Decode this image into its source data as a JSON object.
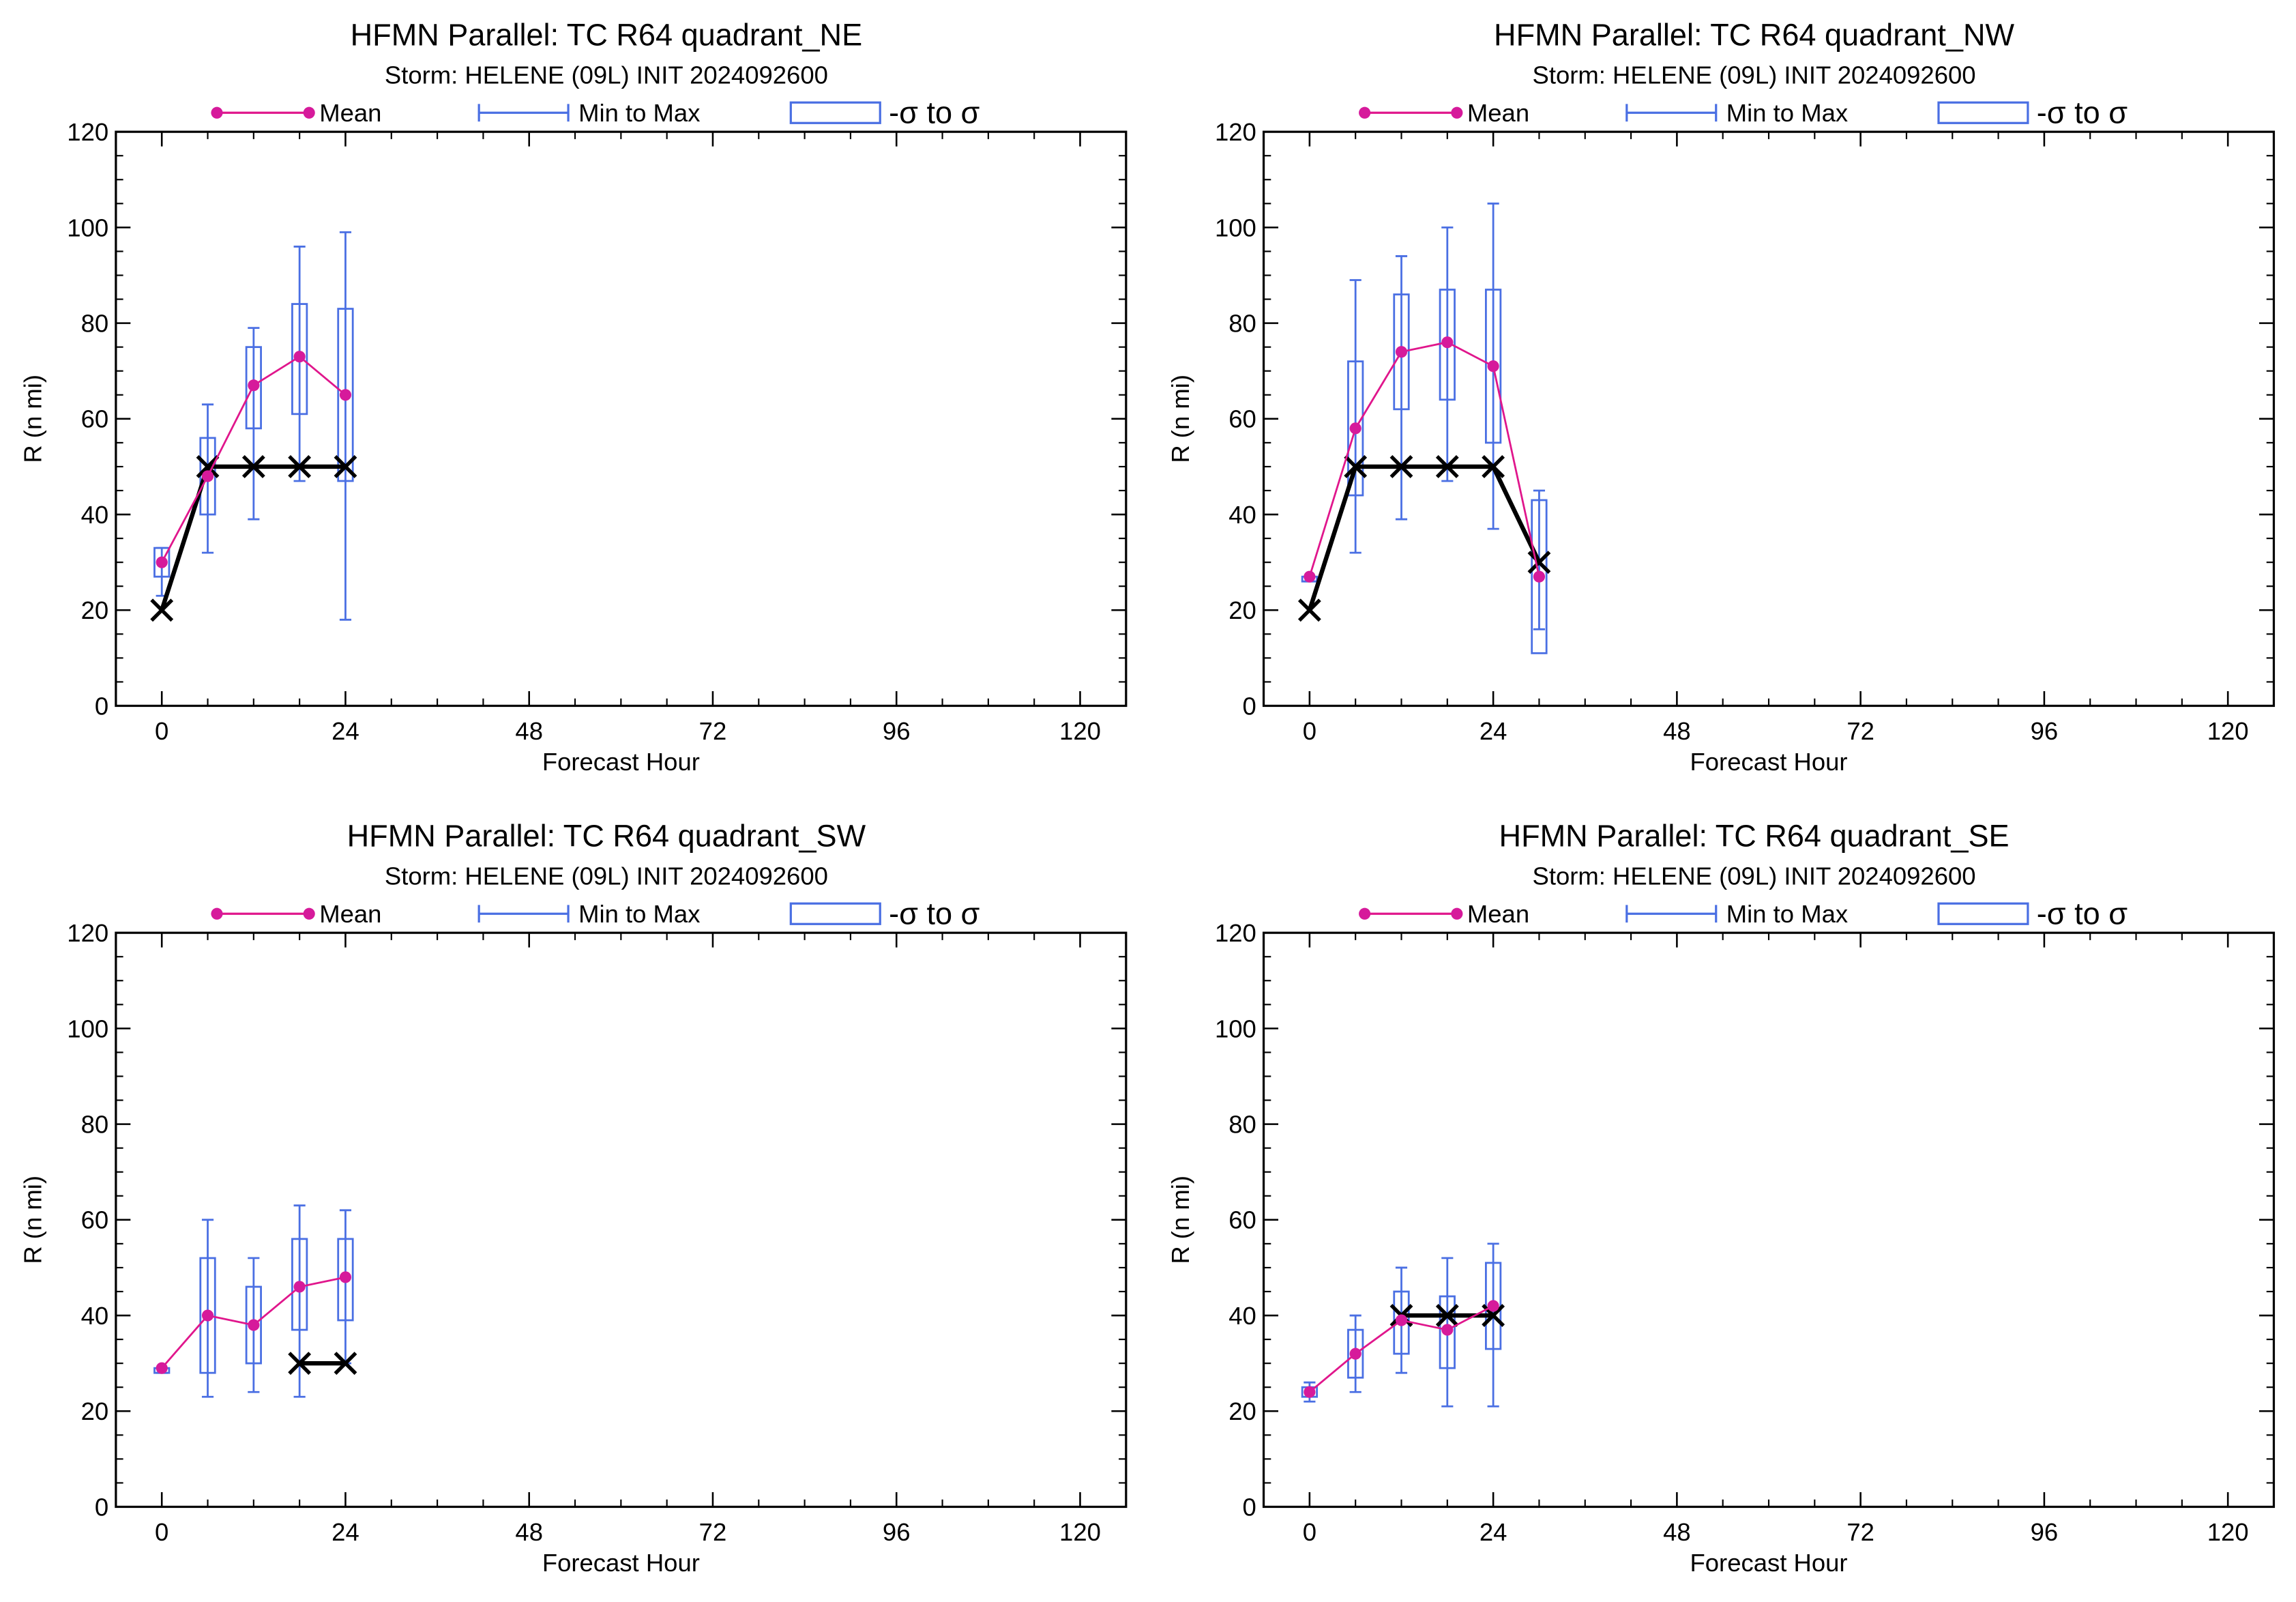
{
  "colors": {
    "mean": "#e0168c",
    "mean_marker": "#d61a9b",
    "range": "#4a6fe3",
    "box": "#4a6fe3",
    "best_track": "#000000",
    "axis": "#000000",
    "background": "#ffffff"
  },
  "legend": {
    "mean_label": "Mean",
    "range_label": "Min to Max",
    "sigma_label": "-σ to σ"
  },
  "chart_data": [
    {
      "type": "line",
      "title": "HFMN Parallel: TC  R64 quadrant_NE",
      "subtitle": "Storm: HELENE (09L) INIT 2024092600",
      "xlabel": "Forecast Hour",
      "ylabel": "R (n mi)",
      "xlim": [
        -6,
        126
      ],
      "ylim": [
        0,
        120
      ],
      "xticks": [
        0,
        24,
        48,
        72,
        96,
        120
      ],
      "yticks": [
        0,
        20,
        40,
        60,
        80,
        100,
        120
      ],
      "legend_position": "top",
      "stats": [
        {
          "x": 0,
          "mean": 30,
          "min": 23,
          "max": 33,
          "sd_low": 27,
          "sd_high": 33
        },
        {
          "x": 6,
          "mean": 48,
          "min": 32,
          "max": 63,
          "sd_low": 40,
          "sd_high": 56
        },
        {
          "x": 12,
          "mean": 67,
          "min": 39,
          "max": 79,
          "sd_low": 58,
          "sd_high": 75
        },
        {
          "x": 18,
          "mean": 73,
          "min": 47,
          "max": 96,
          "sd_low": 61,
          "sd_high": 84
        },
        {
          "x": 24,
          "mean": 65,
          "min": 18,
          "max": 99,
          "sd_low": 47,
          "sd_high": 83
        }
      ],
      "best_track": {
        "x": [
          0,
          6,
          12,
          18,
          24
        ],
        "y": [
          20,
          50,
          50,
          50,
          50
        ]
      }
    },
    {
      "type": "line",
      "title": "HFMN Parallel: TC  R64 quadrant_NW",
      "subtitle": "Storm: HELENE (09L) INIT 2024092600",
      "xlabel": "Forecast Hour",
      "ylabel": "R (n mi)",
      "xlim": [
        -6,
        126
      ],
      "ylim": [
        0,
        120
      ],
      "xticks": [
        0,
        24,
        48,
        72,
        96,
        120
      ],
      "yticks": [
        0,
        20,
        40,
        60,
        80,
        100,
        120
      ],
      "legend_position": "top",
      "stats": [
        {
          "x": 0,
          "mean": 27,
          "min": 26,
          "max": 27,
          "sd_low": 26,
          "sd_high": 27
        },
        {
          "x": 6,
          "mean": 58,
          "min": 32,
          "max": 89,
          "sd_low": 44,
          "sd_high": 72
        },
        {
          "x": 12,
          "mean": 74,
          "min": 39,
          "max": 94,
          "sd_low": 62,
          "sd_high": 86
        },
        {
          "x": 18,
          "mean": 76,
          "min": 47,
          "max": 100,
          "sd_low": 64,
          "sd_high": 87
        },
        {
          "x": 24,
          "mean": 71,
          "min": 37,
          "max": 105,
          "sd_low": 55,
          "sd_high": 87
        },
        {
          "x": 30,
          "mean": 27,
          "min": 16,
          "max": 45,
          "sd_low": 11,
          "sd_high": 43
        }
      ],
      "best_track": {
        "x": [
          0,
          6,
          12,
          18,
          24,
          30
        ],
        "y": [
          20,
          50,
          50,
          50,
          50,
          30
        ]
      }
    },
    {
      "type": "line",
      "title": "HFMN Parallel: TC  R64 quadrant_SW",
      "subtitle": "Storm: HELENE (09L) INIT 2024092600",
      "xlabel": "Forecast Hour",
      "ylabel": "R (n mi)",
      "xlim": [
        -6,
        126
      ],
      "ylim": [
        0,
        120
      ],
      "xticks": [
        0,
        24,
        48,
        72,
        96,
        120
      ],
      "yticks": [
        0,
        20,
        40,
        60,
        80,
        100,
        120
      ],
      "legend_position": "top",
      "stats": [
        {
          "x": 0,
          "mean": 29,
          "min": 28,
          "max": 29,
          "sd_low": 28,
          "sd_high": 29
        },
        {
          "x": 6,
          "mean": 40,
          "min": 23,
          "max": 60,
          "sd_low": 28,
          "sd_high": 52
        },
        {
          "x": 12,
          "mean": 38,
          "min": 24,
          "max": 52,
          "sd_low": 30,
          "sd_high": 46
        },
        {
          "x": 18,
          "mean": 46,
          "min": 23,
          "max": 63,
          "sd_low": 37,
          "sd_high": 56
        },
        {
          "x": 24,
          "mean": 48,
          "min": 30,
          "max": 62,
          "sd_low": 39,
          "sd_high": 56
        }
      ],
      "best_track": {
        "x": [
          18,
          24
        ],
        "y": [
          30,
          30
        ]
      }
    },
    {
      "type": "line",
      "title": "HFMN Parallel: TC  R64 quadrant_SE",
      "subtitle": "Storm: HELENE (09L) INIT 2024092600",
      "xlabel": "Forecast Hour",
      "ylabel": "R (n mi)",
      "xlim": [
        -6,
        126
      ],
      "ylim": [
        0,
        120
      ],
      "xticks": [
        0,
        24,
        48,
        72,
        96,
        120
      ],
      "yticks": [
        0,
        20,
        40,
        60,
        80,
        100,
        120
      ],
      "legend_position": "top",
      "stats": [
        {
          "x": 0,
          "mean": 24,
          "min": 22,
          "max": 26,
          "sd_low": 23,
          "sd_high": 25
        },
        {
          "x": 6,
          "mean": 32,
          "min": 24,
          "max": 40,
          "sd_low": 27,
          "sd_high": 37
        },
        {
          "x": 12,
          "mean": 39,
          "min": 28,
          "max": 50,
          "sd_low": 32,
          "sd_high": 45
        },
        {
          "x": 18,
          "mean": 37,
          "min": 21,
          "max": 52,
          "sd_low": 29,
          "sd_high": 44
        },
        {
          "x": 24,
          "mean": 42,
          "min": 21,
          "max": 55,
          "sd_low": 33,
          "sd_high": 51
        }
      ],
      "best_track": {
        "x": [
          12,
          18,
          24
        ],
        "y": [
          40,
          40,
          40
        ]
      }
    }
  ]
}
